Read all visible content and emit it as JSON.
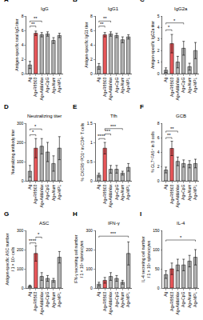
{
  "chart_data": [
    {
      "type": "bar",
      "title": "A",
      "subtitle": "IgG",
      "ylabel": [
        "Antigen-specific total IgG titer"
      ],
      "categories": [
        "Ag",
        "Ag+R9B03",
        "Ag+AddaVax",
        "Ag+CpG",
        "Ag+Alum",
        "Ag+MPL"
      ],
      "values": [
        1.2,
        5.6,
        5.4,
        5.5,
        4.6,
        5.3
      ],
      "errors": [
        0.5,
        0.3,
        0.3,
        0.3,
        0.4,
        0.3
      ],
      "colors": [
        "#b3b3b3",
        "#e8575a",
        "#b3b3b3",
        "#b3b3b3",
        "#b3b3b3",
        "#b3b3b3"
      ],
      "ylim": [
        0,
        8
      ],
      "yticks": [
        0,
        2,
        4,
        6,
        8
      ],
      "grid": false,
      "significance": [
        {
          "from": 0,
          "to": 1,
          "y": 6.6,
          "text": "**"
        },
        {
          "from": 0,
          "to": 2,
          "y": 7.3,
          "text": "**"
        }
      ]
    },
    {
      "type": "bar",
      "title": "B",
      "subtitle": "IgG1",
      "ylabel": [
        "Antigen-specific IgG1 titer"
      ],
      "categories": [
        "Ag",
        "Ag+R9B03",
        "Ag+AddaVax",
        "Ag+CpG",
        "Ag+Alum",
        "Ag+MPL"
      ],
      "values": [
        1.0,
        5.4,
        5.5,
        5.3,
        4.7,
        5.1
      ],
      "errors": [
        0.4,
        0.3,
        0.3,
        0.3,
        0.4,
        0.3
      ],
      "colors": [
        "#b3b3b3",
        "#e8575a",
        "#b3b3b3",
        "#b3b3b3",
        "#b3b3b3",
        "#b3b3b3"
      ],
      "ylim": [
        0,
        8
      ],
      "yticks": [
        0,
        2,
        4,
        6,
        8
      ],
      "grid": false,
      "significance": [
        {
          "from": 0,
          "to": 1,
          "y": 6.6,
          "text": "**"
        },
        {
          "from": 0,
          "to": 2,
          "y": 7.3,
          "text": "**"
        }
      ]
    },
    {
      "type": "bar",
      "title": "C",
      "subtitle": "IgG2a",
      "ylabel": [
        "Antigen-specific IgG2a titer"
      ],
      "categories": [
        "Ag",
        "Ag+R9B03",
        "Ag+AddaVax",
        "Ag+CpG",
        "Ag+Alum",
        "Ag+MPL"
      ],
      "values": [
        0.3,
        2.6,
        1.0,
        2.2,
        0.6,
        2.0
      ],
      "errors": [
        0.2,
        0.8,
        0.5,
        0.6,
        0.3,
        0.7
      ],
      "colors": [
        "#b3b3b3",
        "#e8575a",
        "#b3b3b3",
        "#b3b3b3",
        "#b3b3b3",
        "#b3b3b3"
      ],
      "ylim": [
        0,
        5
      ],
      "yticks": [
        0,
        1,
        2,
        3,
        4,
        5
      ],
      "grid": false,
      "significance": [
        {
          "from": 0,
          "to": 1,
          "y": 3.8,
          "text": "*"
        },
        {
          "from": 0,
          "to": 3,
          "y": 4.4,
          "text": "*"
        }
      ]
    },
    {
      "type": "bar",
      "title": "D",
      "subtitle": "Neutralizing titer",
      "ylabel": [
        "Neutralizing antibody titer"
      ],
      "categories": [
        "Ag",
        "Ag+R9B03",
        "Ag+AddaVax",
        "Ag+CpG",
        "Ag+Alum",
        "Ag+MPL"
      ],
      "values": [
        50,
        170,
        180,
        150,
        90,
        170
      ],
      "errors": [
        30,
        50,
        40,
        50,
        40,
        60
      ],
      "colors": [
        "#b3b3b3",
        "#e8575a",
        "#b3b3b3",
        "#b3b3b3",
        "#b3b3b3",
        "#b3b3b3"
      ],
      "ylim": [
        0,
        300
      ],
      "yticks": [
        0,
        100,
        200,
        300
      ],
      "grid": false,
      "significance": [
        {
          "from": 0,
          "to": 1,
          "y": 240,
          "text": "*"
        },
        {
          "from": 0,
          "to": 2,
          "y": 270,
          "text": "*"
        }
      ]
    },
    {
      "type": "bar",
      "title": "E",
      "subtitle": "Tfh",
      "ylabel": [
        "% CXCR5⁺PD1⁺ in CD4⁺ T cells"
      ],
      "categories": [
        "Ag",
        "Ag+R9B03",
        "Ag+AddaVax",
        "Ag+CpG",
        "Ag+Alum",
        "Ag+MPL"
      ],
      "values": [
        0.15,
        0.85,
        0.3,
        0.3,
        0.2,
        0.35
      ],
      "errors": [
        0.05,
        0.15,
        0.1,
        0.1,
        0.05,
        0.1
      ],
      "colors": [
        "#b3b3b3",
        "#e8575a",
        "#b3b3b3",
        "#b3b3b3",
        "#b3b3b3",
        "#b3b3b3"
      ],
      "ylim": [
        0,
        1.5
      ],
      "yticks": [
        0,
        0.5,
        1,
        1.5
      ],
      "grid": false,
      "significance": [
        {
          "from": 0,
          "to": 1,
          "y": 1.1,
          "text": "****"
        },
        {
          "from": 1,
          "to": 2,
          "y": 1.22,
          "text": "***"
        },
        {
          "from": 1,
          "to": 4,
          "y": 1.36,
          "text": "***"
        }
      ]
    },
    {
      "type": "bar",
      "title": "F",
      "subtitle": "GCB",
      "ylabel": [
        "% GL7⁺FAS⁺ in B cells"
      ],
      "categories": [
        "Ag",
        "Ag+R9B03",
        "Ag+AddaVax",
        "Ag+CpG",
        "Ag+Alum",
        "Ag+MPL"
      ],
      "values": [
        1.5,
        4.5,
        2.7,
        2.4,
        2.3,
        2.4
      ],
      "errors": [
        0.4,
        1.0,
        0.6,
        0.5,
        0.5,
        0.6
      ],
      "colors": [
        "#b3b3b3",
        "#e8575a",
        "#b3b3b3",
        "#b3b3b3",
        "#b3b3b3",
        "#b3b3b3"
      ],
      "ylim": [
        0,
        8
      ],
      "yticks": [
        0,
        2,
        4,
        6,
        8
      ],
      "grid": false,
      "significance": [
        {
          "from": 0,
          "to": 1,
          "y": 6.0,
          "text": "**"
        },
        {
          "from": 0,
          "to": 2,
          "y": 6.9,
          "text": "**"
        }
      ]
    },
    {
      "type": "bar",
      "title": "G",
      "subtitle": "ASC",
      "ylabel": [
        "Antigen-specific ASC number",
        "/ 1 × 10⁶ cells"
      ],
      "categories": [
        "Ag",
        "Ag+R9B03",
        "Ag+AddaVax",
        "Ag+CpG",
        "Ag+Alum",
        "Ag+MPL"
      ],
      "values": [
        10,
        180,
        60,
        50,
        40,
        160
      ],
      "errors": [
        5,
        40,
        20,
        15,
        10,
        30
      ],
      "colors": [
        "#b3b3b3",
        "#e8575a",
        "#b3b3b3",
        "#b3b3b3",
        "#b3b3b3",
        "#b3b3b3"
      ],
      "ylim": [
        0,
        300
      ],
      "yticks": [
        0,
        100,
        200,
        300
      ],
      "grid": false,
      "significance": [
        {
          "from": 0,
          "to": 1,
          "y": 235,
          "text": "****"
        },
        {
          "from": 1,
          "to": 2,
          "y": 265,
          "text": "*"
        }
      ]
    },
    {
      "type": "bar",
      "title": "H",
      "subtitle": "IFN-γ",
      "ylabel": [
        "IFN-γ secreting cell number",
        "/ 1 × 10⁶ splenocytes"
      ],
      "categories": [
        "Ag",
        "Ag+R9B03",
        "Ag+AddaVax",
        "Ag+CpG",
        "Ag+Alum",
        "Ag+MPL"
      ],
      "values": [
        20,
        40,
        60,
        50,
        30,
        180
      ],
      "errors": [
        10,
        15,
        20,
        15,
        10,
        60
      ],
      "colors": [
        "#b3b3b3",
        "#e8575a",
        "#b3b3b3",
        "#b3b3b3",
        "#b3b3b3",
        "#b3b3b3"
      ],
      "ylim": [
        0,
        300
      ],
      "yticks": [
        0,
        100,
        200,
        300
      ],
      "grid": false,
      "significance": [
        {
          "from": 0,
          "to": 5,
          "y": 270,
          "text": "***"
        }
      ]
    },
    {
      "type": "bar",
      "title": "I",
      "subtitle": "IL-4",
      "ylabel": [
        "IL-4 secreting cell number",
        "/ 1 × 10⁶ splenocytes"
      ],
      "categories": [
        "Ag",
        "Ag+R9B03",
        "Ag+AddaVax",
        "Ag+CpG",
        "Ag+Alum",
        "Ag+MPL"
      ],
      "values": [
        35,
        50,
        60,
        60,
        70,
        80
      ],
      "errors": [
        10,
        15,
        15,
        15,
        15,
        20
      ],
      "colors": [
        "#b3b3b3",
        "#e8575a",
        "#b3b3b3",
        "#b3b3b3",
        "#b3b3b3",
        "#b3b3b3"
      ],
      "ylim": [
        0,
        150
      ],
      "yticks": [
        0,
        50,
        100,
        150
      ],
      "grid": false,
      "significance": [
        {
          "from": 0,
          "to": 5,
          "y": 125,
          "text": "*"
        }
      ]
    }
  ]
}
